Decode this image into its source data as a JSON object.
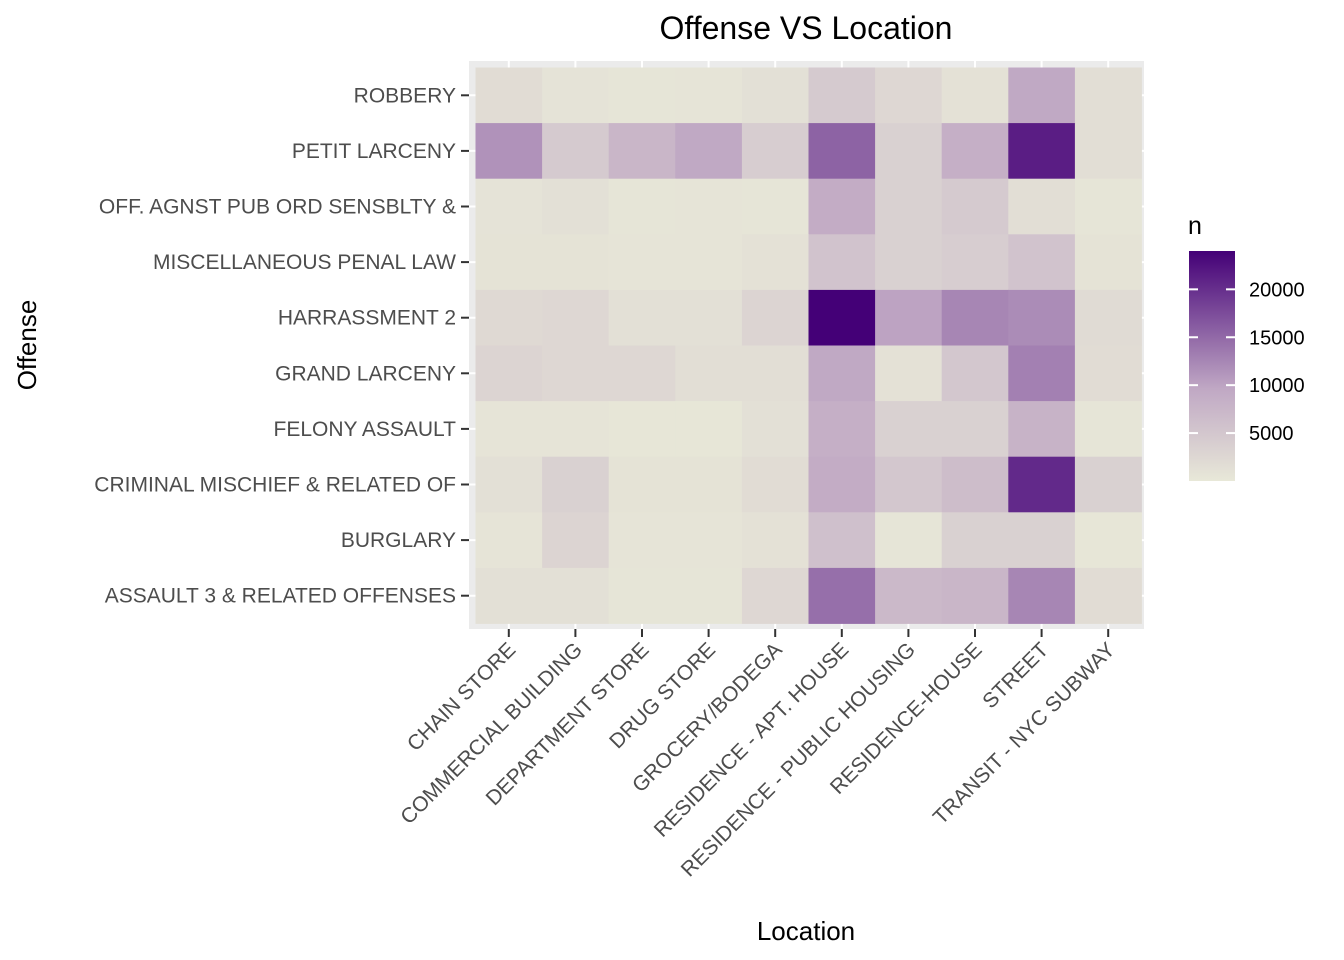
{
  "chart_data": {
    "type": "heatmap",
    "title": "Offense VS Location",
    "xlabel": "Location",
    "ylabel": "Offense",
    "x_categories": [
      "CHAIN STORE",
      "COMMERCIAL BUILDING",
      "DEPARTMENT STORE",
      "DRUG STORE",
      "GROCERY/BODEGA",
      "RESIDENCE - APT. HOUSE",
      "RESIDENCE - PUBLIC HOUSING",
      "RESIDENCE-HOUSE",
      "STREET",
      "TRANSIT - NYC SUBWAY"
    ],
    "y_categories": [
      "ROBBERY",
      "PETIT LARCENY",
      "OFF. AGNST PUB ORD SENSBLTY &",
      "MISCELLANEOUS PENAL LAW",
      "HARRASSMENT 2",
      "GRAND LARCENY",
      "FELONY ASSAULT",
      "CRIMINAL MISCHIEF & RELATED OF",
      "BURGLARY",
      "ASSAULT 3 & RELATED OFFENSES"
    ],
    "values": [
      [
        1800,
        700,
        500,
        600,
        1200,
        4500,
        2500,
        1000,
        9500,
        1500
      ],
      [
        11500,
        4500,
        7500,
        9500,
        4000,
        15500,
        3500,
        8500,
        21500,
        1500
      ],
      [
        700,
        1200,
        500,
        600,
        500,
        9000,
        3500,
        4500,
        1500,
        400
      ],
      [
        800,
        800,
        600,
        600,
        1000,
        5500,
        3500,
        4000,
        5500,
        800
      ],
      [
        2200,
        2500,
        1200,
        1200,
        3000,
        24000,
        10000,
        12500,
        12000,
        2000
      ],
      [
        3000,
        2500,
        2500,
        1500,
        1500,
        9500,
        1000,
        5000,
        13000,
        1800
      ],
      [
        600,
        600,
        300,
        300,
        1200,
        8500,
        3500,
        3500,
        8000,
        500
      ],
      [
        1200,
        3500,
        800,
        800,
        1800,
        9000,
        5000,
        6500,
        20500,
        3500
      ],
      [
        600,
        3000,
        600,
        600,
        1000,
        6000,
        500,
        3500,
        3500,
        300
      ],
      [
        1200,
        1200,
        500,
        500,
        2500,
        14500,
        7000,
        7500,
        12500,
        1800
      ]
    ],
    "legend": {
      "title": "n",
      "ticks": [
        5000,
        10000,
        15000,
        20000
      ],
      "tick_labels": [
        "5000",
        "10000",
        "15000",
        "20000"
      ],
      "range": [
        0,
        24000
      ],
      "position": "right"
    },
    "color_low": "#e8e8d8",
    "color_mid": "#c0a8c4",
    "color_high": "#440077",
    "panel_background": "#ebebeb",
    "grid": true
  }
}
